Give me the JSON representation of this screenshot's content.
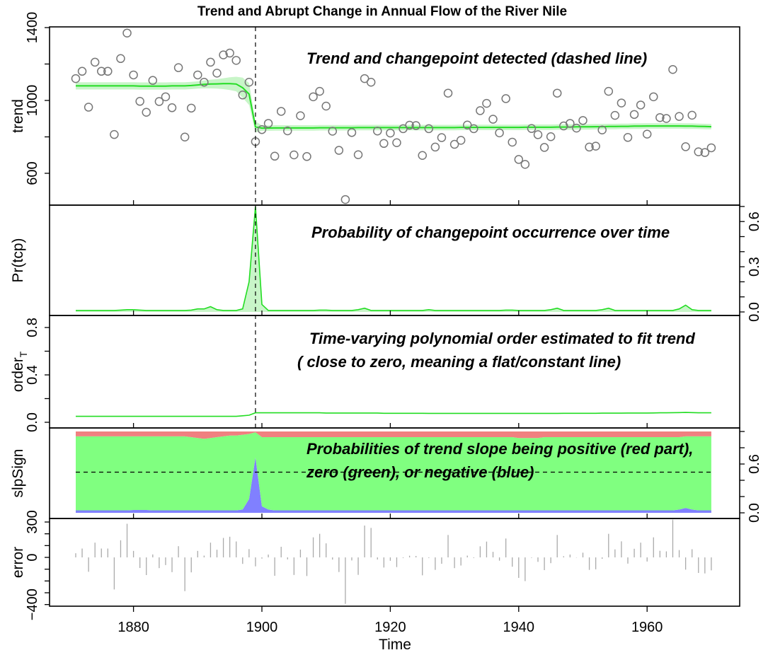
{
  "chart_data": {
    "type": "line",
    "title": "Trend and Abrupt Change in Annual Flow of the River  Nile",
    "xlabel": "Time",
    "xlim": [
      1866,
      1974
    ],
    "x_ticks": [
      "1880",
      "1900",
      "1920",
      "1940",
      "1960"
    ],
    "x_start": 1871,
    "changepoint_year": 1899,
    "colors": {
      "trend": "#22dd22",
      "band": "#c8f5c8",
      "points": "#777777",
      "positive": "#f08080",
      "zero": "#80ff80",
      "negative": "#8080ff",
      "error": "#aaaaaa"
    },
    "panels": [
      {
        "ylabel": "trend",
        "ylim": [
          420,
          1400
        ],
        "y_ticks": [
          "600",
          "1000",
          "1400"
        ],
        "tick_side": "left",
        "annotation": [
          "Trend and changepoint detected (dashed line)"
        ],
        "observed": [
          1120,
          1160,
          963,
          1210,
          1160,
          1160,
          813,
          1230,
          1370,
          1140,
          995,
          935,
          1110,
          994,
          1020,
          960,
          1180,
          799,
          958,
          1140,
          1100,
          1210,
          1150,
          1250,
          1260,
          1220,
          1030,
          1100,
          774,
          840,
          874,
          694,
          940,
          833,
          701,
          916,
          692,
          1020,
          1050,
          969,
          831,
          726,
          456,
          824,
          702,
          1120,
          1100,
          832,
          764,
          821,
          768,
          845,
          864,
          862,
          698,
          845,
          744,
          796,
          1040,
          759,
          781,
          865,
          845,
          944,
          984,
          897,
          822,
          1010,
          771,
          676,
          649,
          846,
          812,
          742,
          801,
          1040,
          860,
          874,
          848,
          890,
          744,
          749,
          838,
          1050,
          918,
          986,
          797,
          923,
          975,
          815,
          1020,
          906,
          901,
          1170,
          912,
          746,
          919,
          718,
          714,
          740
        ],
        "trend": [
          1080,
          1080,
          1080,
          1080,
          1080,
          1080,
          1080,
          1080,
          1080,
          1080,
          1079,
          1079,
          1079,
          1079,
          1079,
          1080,
          1080,
          1080,
          1082,
          1085,
          1088,
          1090,
          1091,
          1092,
          1092,
          1090,
          1070,
          1035,
          855,
          848,
          848,
          849,
          849,
          849,
          849,
          849,
          849,
          849,
          850,
          850,
          850,
          850,
          850,
          850,
          851,
          851,
          851,
          851,
          851,
          851,
          851,
          851,
          851,
          851,
          851,
          851,
          851,
          851,
          851,
          851,
          852,
          852,
          852,
          852,
          852,
          852,
          852,
          852,
          852,
          852,
          853,
          853,
          853,
          853,
          853,
          854,
          854,
          854,
          855,
          855,
          855,
          856,
          856,
          857,
          857,
          858,
          858,
          859,
          859,
          860,
          860,
          860,
          860,
          860,
          860,
          859,
          859,
          858,
          857,
          856
        ],
        "trend_ci_halfwidth": [
          20,
          20,
          20,
          20,
          20,
          20,
          20,
          20,
          20,
          20,
          20,
          20,
          20,
          20,
          20,
          20,
          20,
          20,
          20,
          20,
          22,
          24,
          26,
          30,
          35,
          40,
          55,
          60,
          30,
          15,
          15,
          15,
          15,
          15,
          15,
          15,
          15,
          15,
          15,
          15,
          15,
          15,
          15,
          15,
          15,
          15,
          15,
          15,
          15,
          15,
          15,
          15,
          15,
          15,
          15,
          15,
          15,
          15,
          15,
          15,
          15,
          15,
          15,
          15,
          15,
          15,
          15,
          15,
          15,
          15,
          15,
          15,
          15,
          15,
          15,
          15,
          15,
          15,
          15,
          15,
          15,
          15,
          15,
          15,
          15,
          15,
          15,
          15,
          15,
          15,
          15,
          15,
          15,
          15,
          15,
          15,
          15,
          15,
          15,
          15
        ]
      },
      {
        "ylabel": "Pr(tcp)",
        "ylim": [
          0,
          0.71
        ],
        "y_ticks": [
          "0.0",
          "0.3",
          "0.6"
        ],
        "tick_side": "right",
        "annotation": [
          "Probability of changepoint occurrence over time"
        ],
        "values": [
          0.01,
          0.01,
          0.01,
          0.01,
          0.01,
          0.01,
          0.01,
          0.012,
          0.015,
          0.015,
          0.012,
          0.01,
          0.01,
          0.01,
          0.01,
          0.01,
          0.01,
          0.01,
          0.012,
          0.02,
          0.02,
          0.035,
          0.015,
          0.01,
          0.01,
          0.01,
          0.02,
          0.2,
          0.7,
          0.05,
          0.01,
          0.01,
          0.01,
          0.01,
          0.01,
          0.01,
          0.01,
          0.01,
          0.012,
          0.012,
          0.01,
          0.01,
          0.01,
          0.01,
          0.015,
          0.025,
          0.01,
          0.01,
          0.01,
          0.01,
          0.01,
          0.01,
          0.01,
          0.01,
          0.01,
          0.015,
          0.01,
          0.01,
          0.01,
          0.01,
          0.01,
          0.01,
          0.01,
          0.01,
          0.01,
          0.01,
          0.01,
          0.012,
          0.012,
          0.01,
          0.01,
          0.01,
          0.01,
          0.01,
          0.015,
          0.025,
          0.01,
          0.01,
          0.01,
          0.01,
          0.01,
          0.01,
          0.015,
          0.025,
          0.01,
          0.01,
          0.01,
          0.01,
          0.01,
          0.01,
          0.01,
          0.01,
          0.01,
          0.01,
          0.02,
          0.045,
          0.015,
          0.01,
          0.01,
          0.01
        ]
      },
      {
        "ylabel": "order",
        "ylabel_sub": "T",
        "ylim": [
          -0.04,
          0.9
        ],
        "y_ticks": [
          "0.0",
          "0.4",
          "0.8"
        ],
        "tick_side": "left",
        "annotation": [
          "Time-varying polynomial order estimated to fit trend",
          "( close to zero, meaning a flat/constant line)"
        ],
        "values": [
          0.05,
          0.05,
          0.05,
          0.05,
          0.05,
          0.05,
          0.05,
          0.05,
          0.05,
          0.05,
          0.05,
          0.05,
          0.05,
          0.05,
          0.05,
          0.05,
          0.05,
          0.05,
          0.05,
          0.05,
          0.05,
          0.05,
          0.05,
          0.05,
          0.05,
          0.05,
          0.055,
          0.06,
          0.08,
          0.08,
          0.08,
          0.08,
          0.08,
          0.08,
          0.08,
          0.08,
          0.08,
          0.08,
          0.08,
          0.078,
          0.078,
          0.078,
          0.078,
          0.078,
          0.078,
          0.078,
          0.078,
          0.078,
          0.076,
          0.076,
          0.076,
          0.076,
          0.076,
          0.076,
          0.076,
          0.075,
          0.075,
          0.075,
          0.075,
          0.075,
          0.075,
          0.075,
          0.075,
          0.075,
          0.075,
          0.075,
          0.075,
          0.075,
          0.075,
          0.075,
          0.075,
          0.075,
          0.075,
          0.075,
          0.075,
          0.075,
          0.076,
          0.076,
          0.076,
          0.076,
          0.076,
          0.076,
          0.077,
          0.077,
          0.077,
          0.077,
          0.078,
          0.078,
          0.078,
          0.078,
          0.079,
          0.08,
          0.08,
          0.081,
          0.082,
          0.083,
          0.082,
          0.08,
          0.08,
          0.08
        ]
      },
      {
        "ylabel": "slpSign",
        "ylim": [
          0,
          1
        ],
        "y_ticks": [
          "0.0",
          "0.6"
        ],
        "tick_side": "right",
        "reference_line": 0.5,
        "annotation": [
          "Probabilities of trend slope being positive (red part),",
          "zero (green), or negative (blue)"
        ],
        "positive": [
          0.06,
          0.06,
          0.06,
          0.06,
          0.06,
          0.06,
          0.06,
          0.06,
          0.06,
          0.06,
          0.06,
          0.06,
          0.06,
          0.06,
          0.06,
          0.06,
          0.06,
          0.06,
          0.07,
          0.08,
          0.09,
          0.08,
          0.07,
          0.06,
          0.05,
          0.05,
          0.04,
          0.03,
          0.01,
          0.07,
          0.07,
          0.07,
          0.07,
          0.07,
          0.07,
          0.07,
          0.07,
          0.07,
          0.07,
          0.07,
          0.07,
          0.07,
          0.07,
          0.07,
          0.07,
          0.07,
          0.07,
          0.07,
          0.07,
          0.07,
          0.07,
          0.07,
          0.07,
          0.07,
          0.07,
          0.07,
          0.07,
          0.07,
          0.07,
          0.07,
          0.07,
          0.07,
          0.07,
          0.07,
          0.07,
          0.07,
          0.07,
          0.07,
          0.07,
          0.08,
          0.08,
          0.08,
          0.08,
          0.07,
          0.07,
          0.07,
          0.07,
          0.07,
          0.07,
          0.07,
          0.07,
          0.07,
          0.07,
          0.07,
          0.07,
          0.07,
          0.07,
          0.07,
          0.07,
          0.07,
          0.07,
          0.07,
          0.07,
          0.07,
          0.07,
          0.06,
          0.06,
          0.06,
          0.06,
          0.06
        ],
        "negative": [
          0.03,
          0.03,
          0.03,
          0.03,
          0.03,
          0.03,
          0.03,
          0.03,
          0.03,
          0.035,
          0.035,
          0.035,
          0.03,
          0.03,
          0.03,
          0.03,
          0.03,
          0.03,
          0.03,
          0.03,
          0.03,
          0.03,
          0.03,
          0.03,
          0.03,
          0.03,
          0.04,
          0.17,
          0.68,
          0.08,
          0.04,
          0.03,
          0.03,
          0.03,
          0.03,
          0.03,
          0.03,
          0.03,
          0.03,
          0.03,
          0.03,
          0.03,
          0.03,
          0.03,
          0.03,
          0.03,
          0.03,
          0.03,
          0.03,
          0.03,
          0.03,
          0.03,
          0.03,
          0.03,
          0.03,
          0.03,
          0.03,
          0.03,
          0.03,
          0.03,
          0.03,
          0.03,
          0.03,
          0.03,
          0.03,
          0.03,
          0.03,
          0.03,
          0.03,
          0.03,
          0.03,
          0.03,
          0.03,
          0.03,
          0.03,
          0.03,
          0.03,
          0.03,
          0.03,
          0.03,
          0.03,
          0.03,
          0.03,
          0.03,
          0.03,
          0.03,
          0.03,
          0.03,
          0.03,
          0.03,
          0.03,
          0.03,
          0.03,
          0.03,
          0.04,
          0.06,
          0.04,
          0.03,
          0.03,
          0.03
        ]
      },
      {
        "ylabel": "error",
        "ylim": [
          -415,
          330
        ],
        "y_ticks": [
          "−400",
          "0",
          "300"
        ],
        "tick_side": "left",
        "values": [
          35,
          75,
          -122,
          125,
          75,
          75,
          -272,
          145,
          285,
          55,
          -90,
          -150,
          25,
          -91,
          -65,
          -125,
          95,
          -286,
          -127,
          55,
          15,
          125,
          65,
          165,
          175,
          135,
          -55,
          70,
          -76,
          -10,
          24,
          -156,
          90,
          -17,
          -149,
          66,
          -158,
          170,
          200,
          119,
          -19,
          -124,
          -394,
          -26,
          -148,
          270,
          250,
          -18,
          -86,
          -29,
          -82,
          -5,
          14,
          12,
          -152,
          -5,
          -106,
          -54,
          190,
          -91,
          -69,
          15,
          -5,
          94,
          134,
          47,
          -28,
          160,
          -79,
          -174,
          -201,
          -4,
          -38,
          -108,
          -49,
          190,
          10,
          24,
          -2,
          40,
          -106,
          -101,
          -12,
          200,
          68,
          136,
          -53,
          73,
          125,
          -35,
          170,
          56,
          51,
          320,
          62,
          -104,
          69,
          -132,
          -136,
          -110
        ]
      }
    ]
  }
}
